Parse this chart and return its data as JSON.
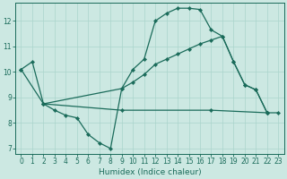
{
  "xlabel": "Humidex (Indice chaleur)",
  "bg_color": "#cce8e2",
  "grid_color": "#aad4cc",
  "line_color": "#1a6b5a",
  "xlim": [
    -0.5,
    23.5
  ],
  "ylim": [
    6.8,
    12.7
  ],
  "yticks": [
    7,
    8,
    9,
    10,
    11,
    12
  ],
  "xticks": [
    0,
    1,
    2,
    3,
    4,
    5,
    6,
    7,
    8,
    9,
    10,
    11,
    12,
    13,
    14,
    15,
    16,
    17,
    18,
    19,
    20,
    21,
    22,
    23
  ],
  "line1_x": [
    0,
    1,
    2,
    3,
    4,
    5,
    6,
    7,
    8,
    9,
    10,
    11,
    12,
    13,
    14,
    15,
    16,
    17,
    18,
    19,
    20,
    21,
    22
  ],
  "line1_y": [
    10.1,
    10.4,
    8.75,
    8.5,
    8.3,
    8.2,
    7.55,
    7.22,
    7.0,
    9.35,
    10.1,
    10.5,
    12.0,
    12.3,
    12.5,
    12.5,
    12.45,
    11.65,
    11.4,
    10.4,
    9.5,
    9.3,
    8.4
  ],
  "line2_x": [
    0,
    2,
    9,
    10,
    11,
    12,
    13,
    14,
    15,
    16,
    17,
    18,
    19,
    20,
    21,
    22
  ],
  "line2_y": [
    10.1,
    8.75,
    9.35,
    9.6,
    9.9,
    10.3,
    10.5,
    10.7,
    10.9,
    11.1,
    11.25,
    11.4,
    10.4,
    9.5,
    9.3,
    8.4
  ],
  "line3_x": [
    2,
    9,
    17,
    22,
    23
  ],
  "line3_y": [
    8.75,
    8.5,
    8.5,
    8.4,
    8.4
  ],
  "marker": "D",
  "marker_size": 2.2,
  "linewidth": 0.9
}
